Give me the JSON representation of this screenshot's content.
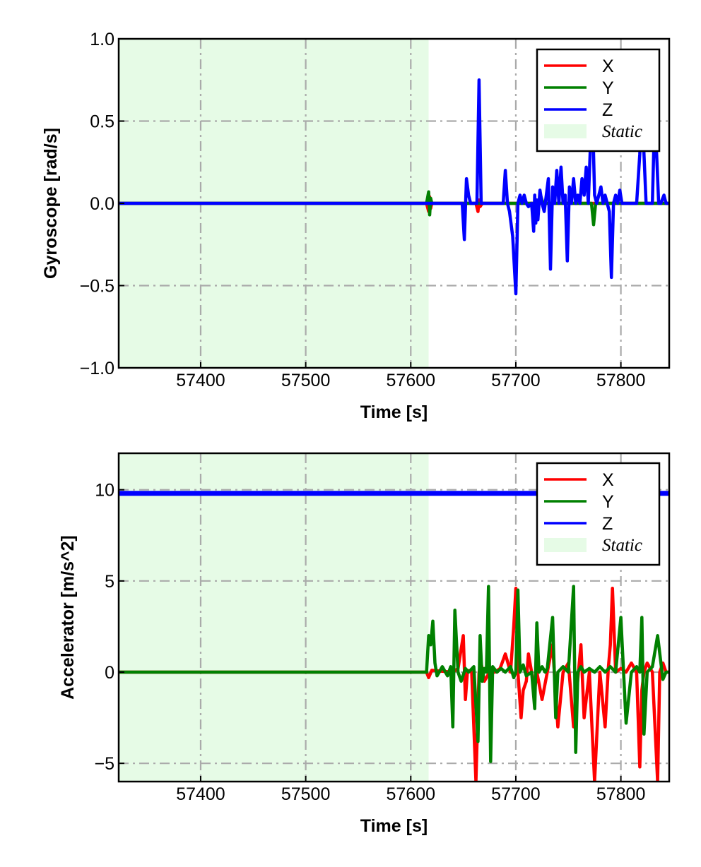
{
  "chart_data": [
    {
      "type": "line",
      "xlabel": "Time [s]",
      "ylabel": "Gyroscope [rad/s]",
      "xlim": [
        57322,
        57846
      ],
      "ylim": [
        -1.0,
        1.0
      ],
      "xticks": [
        57400,
        57500,
        57600,
        57700,
        57800
      ],
      "xtick_labels": [
        "57400",
        "57500",
        "57600",
        "57700",
        "57800"
      ],
      "yticks": [
        -1.0,
        -0.5,
        0.0,
        0.5,
        1.0
      ],
      "ytick_labels": [
        "−1.0",
        "−0.5",
        "0.0",
        "0.5",
        "1.0"
      ],
      "grid": true,
      "legend_position": "top-right",
      "shaded_region": {
        "label": "Static",
        "x": [
          57322,
          57617
        ],
        "color": "#e6fbe6"
      },
      "series": [
        {
          "name": "X",
          "color": "#ff0000",
          "x": [
            57322,
            57615,
            57617,
            57618,
            57619,
            57620,
            57662,
            57664,
            57665,
            57666,
            57668,
            57846
          ],
          "values": [
            0,
            0,
            -0.05,
            0.04,
            -0.03,
            0,
            0,
            -0.05,
            0.02,
            -0.02,
            0,
            0
          ]
        },
        {
          "name": "Y",
          "color": "#008000",
          "x": [
            57322,
            57615,
            57617,
            57618,
            57619,
            57620,
            57722,
            57724,
            57726,
            57772,
            57774,
            57776,
            57846
          ],
          "values": [
            0,
            0,
            0.07,
            -0.07,
            0.03,
            0,
            0,
            0.04,
            0,
            0,
            -0.13,
            0,
            0
          ]
        },
        {
          "name": "Z",
          "color": "#0000ff",
          "x": [
            57322,
            57646,
            57649,
            57651,
            57653,
            57655,
            57657,
            57660,
            57663,
            57665,
            57667,
            57670,
            57688,
            57690,
            57692,
            57694,
            57697,
            57700,
            57702,
            57704,
            57706,
            57708,
            57710,
            57712,
            57715,
            57717,
            57718,
            57719,
            57720,
            57721,
            57723,
            57725,
            57727,
            57729,
            57731,
            57733,
            57735,
            57737,
            57739,
            57741,
            57743,
            57745,
            57747,
            57749,
            57751,
            57753,
            57755,
            57757,
            57759,
            57761,
            57763,
            57765,
            57767,
            57769,
            57771,
            57773,
            57775,
            57777,
            57779,
            57781,
            57783,
            57785,
            57787,
            57789,
            57791,
            57793,
            57795,
            57797,
            57799,
            57801,
            57815,
            57818,
            57820,
            57822,
            57824,
            57830,
            57832,
            57834,
            57836,
            57838,
            57841,
            57843,
            57846
          ],
          "values": [
            0,
            0,
            0,
            -0.22,
            0.15,
            0.05,
            0,
            0,
            0,
            0.75,
            0,
            0,
            0,
            0.2,
            0,
            -0.05,
            -0.2,
            -0.55,
            0,
            0.05,
            0,
            0.05,
            0,
            -0.02,
            0,
            -0.17,
            0.05,
            -0.12,
            0.02,
            -0.1,
            0.08,
            0,
            -0.05,
            0.05,
            0.15,
            -0.4,
            0.1,
            0,
            0.2,
            0,
            0.22,
            0,
            0.05,
            -0.35,
            0.1,
            0,
            0.15,
            0,
            0.05,
            0,
            0.15,
            0.05,
            0.22,
            0,
            0.35,
            0.55,
            0.05,
            0,
            0.05,
            0.1,
            0,
            0.05,
            0,
            -0.05,
            -0.45,
            0,
            0.05,
            0,
            0.08,
            0,
            0,
            0.3,
            0.6,
            0.3,
            0,
            0,
            0.5,
            0.3,
            0,
            0,
            0.05,
            0,
            0
          ]
        }
      ]
    },
    {
      "type": "line",
      "xlabel": "Time [s]",
      "ylabel": "Accelerator [m/s^2]",
      "xlim": [
        57322,
        57846
      ],
      "ylim": [
        -6.0,
        12.0
      ],
      "xticks": [
        57400,
        57500,
        57600,
        57700,
        57800
      ],
      "xtick_labels": [
        "57400",
        "57500",
        "57600",
        "57700",
        "57800"
      ],
      "yticks": [
        -5,
        0,
        5,
        10
      ],
      "ytick_labels": [
        "−5",
        "0",
        "5",
        "10"
      ],
      "grid": true,
      "legend_position": "top-right",
      "shaded_region": {
        "label": "Static",
        "x": [
          57322,
          57617
        ],
        "color": "#e6fbe6"
      },
      "series": [
        {
          "name": "X",
          "color": "#ff0000",
          "x": [
            57322,
            57615,
            57617,
            57620,
            57640,
            57645,
            57650,
            57652,
            57654,
            57658,
            57662,
            57665,
            57667,
            57670,
            57675,
            57680,
            57685,
            57690,
            57695,
            57698,
            57700,
            57702,
            57705,
            57707,
            57710,
            57712,
            57715,
            57718,
            57720,
            57725,
            57730,
            57735,
            57740,
            57745,
            57750,
            57755,
            57758,
            57762,
            57765,
            57768,
            57770,
            57775,
            57780,
            57785,
            57788,
            57790,
            57792,
            57795,
            57800,
            57805,
            57810,
            57815,
            57818,
            57820,
            57822,
            57825,
            57830,
            57835,
            57837,
            57840,
            57843,
            57846
          ],
          "values": [
            0,
            0,
            -0.3,
            0.1,
            0,
            0.2,
            2.0,
            -1.5,
            0.1,
            0,
            -6.0,
            0,
            0.5,
            -0.5,
            0,
            0,
            0.2,
            1.0,
            0,
            2.5,
            4.6,
            0,
            -2.5,
            -1.0,
            -0.5,
            1.0,
            0,
            -1.0,
            0,
            -1.5,
            0,
            1.5,
            -3.0,
            0,
            0.5,
            -3.0,
            -1.0,
            1.5,
            -2.5,
            -1.0,
            0,
            -6.0,
            0,
            -3.0,
            0.2,
            1.5,
            4.6,
            0,
            0.2,
            0,
            0.5,
            0,
            -5.2,
            -1.0,
            0,
            0.5,
            0,
            -6.0,
            0,
            0.5,
            0,
            0
          ]
        },
        {
          "name": "Y",
          "color": "#008000",
          "x": [
            57322,
            57615,
            57617,
            57619,
            57621,
            57623,
            57625,
            57630,
            57635,
            57638,
            57640,
            57642,
            57645,
            57648,
            57652,
            57655,
            57660,
            57664,
            57666,
            57668,
            57670,
            57672,
            57674,
            57676,
            57678,
            57682,
            57686,
            57690,
            57695,
            57698,
            57700,
            57702,
            57704,
            57707,
            57710,
            57715,
            57718,
            57720,
            57722,
            57725,
            57728,
            57730,
            57735,
            57738,
            57740,
            57745,
            57750,
            57755,
            57757,
            57759,
            57762,
            57765,
            57770,
            57775,
            57780,
            57785,
            57790,
            57795,
            57800,
            57805,
            57810,
            57815,
            57818,
            57820,
            57822,
            57825,
            57830,
            57835,
            57840,
            57843,
            57846
          ],
          "values": [
            0,
            0,
            2.0,
            1.5,
            2.8,
            0.5,
            -0.2,
            0.3,
            -0.2,
            0.3,
            -3.0,
            3.4,
            0,
            -0.5,
            0.2,
            0,
            0.3,
            -3.8,
            2.0,
            -0.5,
            0.2,
            0,
            4.7,
            -4.9,
            0.3,
            0,
            0.2,
            0,
            0.3,
            -0.3,
            0,
            4.5,
            0,
            0.4,
            -0.2,
            0,
            -2.0,
            2.7,
            0,
            0.3,
            0,
            0.2,
            3.0,
            -2.5,
            0,
            0.3,
            0,
            4.7,
            -4.4,
            0,
            0.3,
            0,
            0.2,
            0,
            0.3,
            0,
            0.3,
            0,
            3.0,
            -2.8,
            0,
            0.3,
            0,
            3.0,
            -3.4,
            0,
            0.3,
            2.0,
            -0.4,
            0,
            0
          ]
        },
        {
          "name": "Z",
          "color": "#0000ff",
          "x": [
            57322,
            57846
          ],
          "values": [
            9.8,
            9.8
          ]
        }
      ]
    }
  ]
}
